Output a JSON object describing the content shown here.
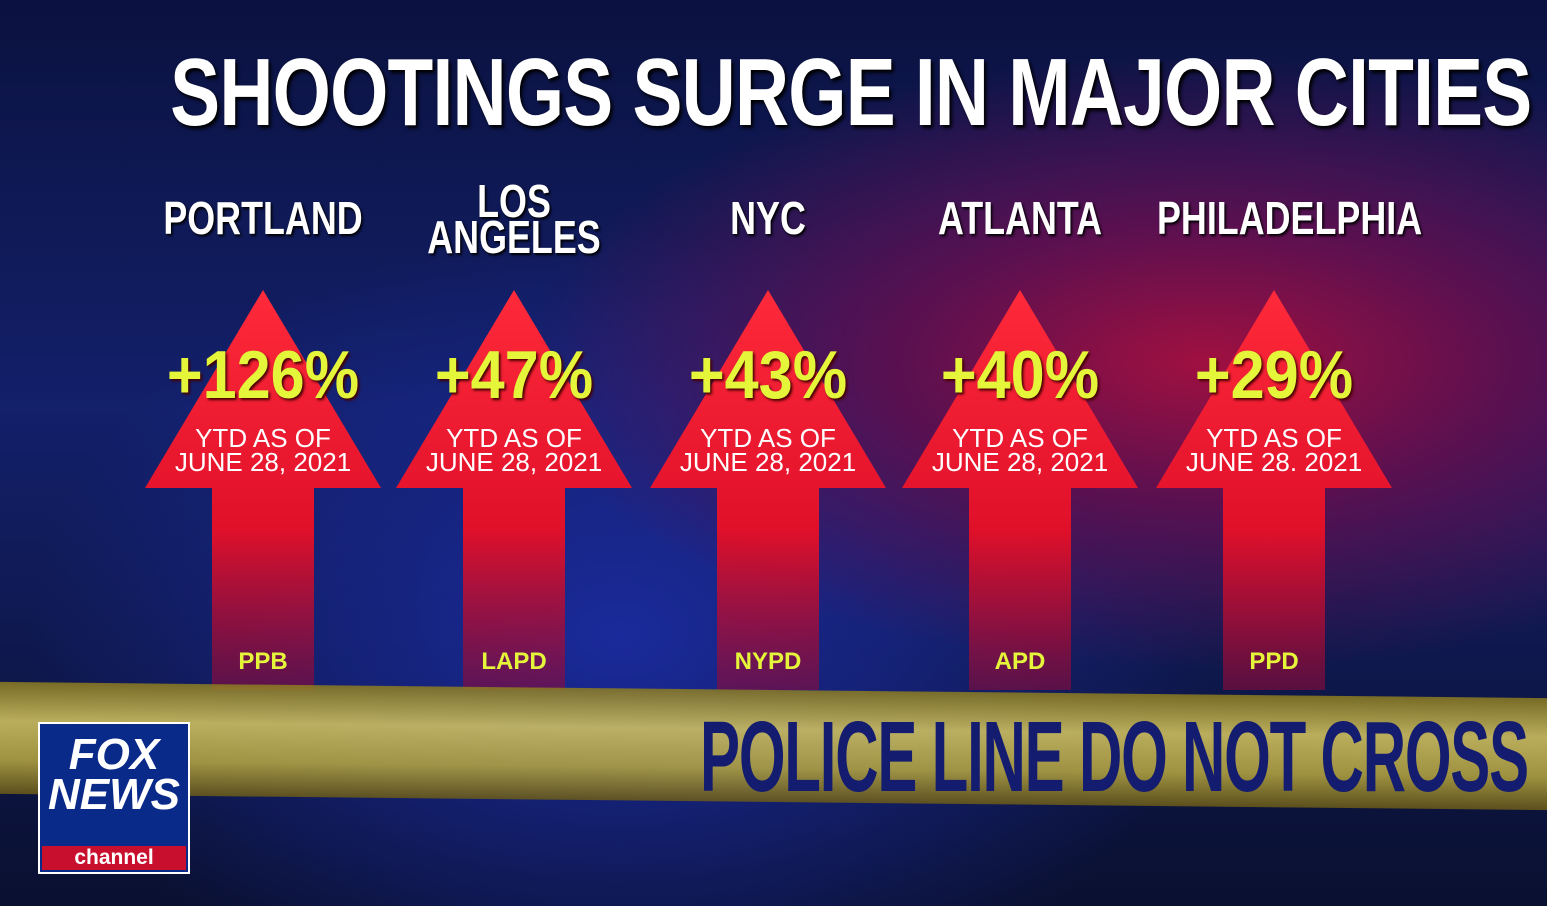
{
  "title": "SHOOTINGS SURGE IN MAJOR CITIES",
  "cities": [
    {
      "name": "PORTLAND",
      "change": "+126%",
      "note": "YTD AS OF\nJUNE 28, 2021",
      "agency": "PPB"
    },
    {
      "name": "LOS\nANGELES",
      "change": "+47%",
      "note": "YTD AS OF\nJUNE 28, 2021",
      "agency": "LAPD"
    },
    {
      "name": "NYC",
      "change": "+43%",
      "note": "YTD AS OF\nJUNE 28, 2021",
      "agency": "NYPD"
    },
    {
      "name": "ATLANTA",
      "change": "+40%",
      "note": "YTD AS OF\nJUNE 28, 2021",
      "agency": "APD"
    },
    {
      "name": "PHILADELPHIA",
      "change": "+29%",
      "note": "YTD AS OF\nJUNE 28. 2021",
      "agency": "PPD"
    }
  ],
  "tape": "POLICE LINE DO NOT CROSS",
  "logo": {
    "brand": "FOX\nNEWS",
    "sub": "channel"
  }
}
